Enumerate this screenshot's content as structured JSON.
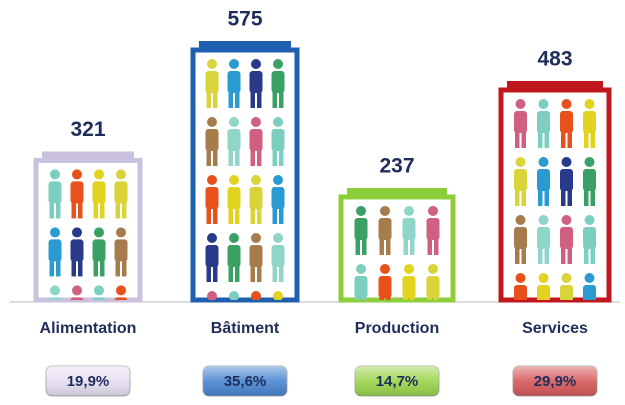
{
  "chart_data": {
    "type": "bar",
    "categories": [
      "Alimentation",
      "Bâtiment",
      "Production",
      "Services"
    ],
    "values": [
      321,
      575,
      237,
      483
    ],
    "shares": [
      19.9,
      35.6,
      14.7,
      29.9
    ],
    "share_labels": [
      "19,9%",
      "35,6%",
      "14,7%",
      "29,9%"
    ],
    "colors": [
      "#c9c1dd",
      "#1f5fb0",
      "#8ccd3a",
      "#c0161e"
    ],
    "share_colors": [
      "#e6def2",
      "#4a86d2",
      "#9ad44c",
      "#d65a5a"
    ]
  }
}
